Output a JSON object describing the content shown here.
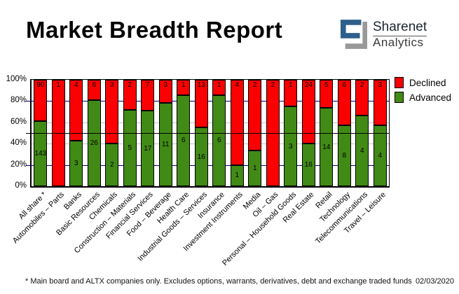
{
  "header": {
    "title": "Market Breadth Report",
    "logo": {
      "name": "Sharenet",
      "sub": "Analytics",
      "colors": {
        "blue": "#2E5E8C",
        "gray": "#999999"
      }
    }
  },
  "chart_data": {
    "type": "bar",
    "stacked": true,
    "percent_axis": true,
    "categories": [
      "All share *",
      "Automobiles – Parts",
      "Banks",
      "Basic Resources",
      "Chemicals",
      "Construction – Materials",
      "Financial Services",
      "Food – Beverage",
      "Health Care",
      "Industrial Goods – Services",
      "Insurance",
      "Investment Instruments",
      "Media",
      "Oil – Gas",
      "Personal – Household Goods",
      "Real Estate",
      "Retail",
      "Technology",
      "Telecommunications",
      "Travel – Leisure"
    ],
    "series": [
      {
        "name": "Declined",
        "color": "#FB0000",
        "values": [
          90,
          1,
          4,
          6,
          3,
          2,
          7,
          3,
          1,
          13,
          1,
          4,
          2,
          2,
          1,
          24,
          5,
          6,
          2,
          3
        ]
      },
      {
        "name": "Advanced",
        "color": "#418A16",
        "values": [
          143,
          0,
          3,
          26,
          2,
          5,
          17,
          11,
          6,
          16,
          6,
          1,
          1,
          0,
          3,
          16,
          14,
          8,
          4,
          4
        ]
      }
    ],
    "ytick_labels": [
      "0%",
      "20%",
      "40%",
      "60%",
      "80%",
      "100%"
    ],
    "ylim": [
      0,
      100
    ],
    "legend_position": "right",
    "reference_line_pct": 50,
    "gridline_navy": "#000080",
    "gridline_gray": "#C4C4C4"
  },
  "footer": {
    "note": "* Main board and ALTX companies only. Excludes options, warrants, derivatives, debt and exchange traded funds",
    "date": "02/03/2020"
  }
}
